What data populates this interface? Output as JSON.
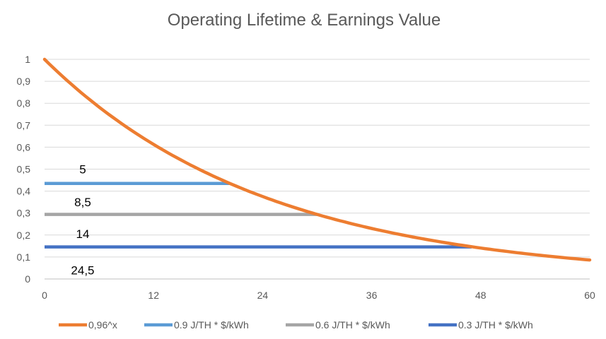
{
  "chart_data": {
    "type": "line",
    "title": "Operating Lifetime & Earnings Value",
    "xlabel": "",
    "ylabel": "",
    "xlim": [
      0,
      60
    ],
    "ylim": [
      0,
      1
    ],
    "x_ticks": [
      "0",
      "12",
      "24",
      "36",
      "48",
      "60"
    ],
    "y_ticks": [
      "0",
      "0,1",
      "0,2",
      "0,3",
      "0,4",
      "0,5",
      "0,6",
      "0,7",
      "0,8",
      "0,9",
      "1"
    ],
    "grid": "horizontal",
    "legend_position": "bottom",
    "series": [
      {
        "name": "0,96^x",
        "color": "#ED7D31",
        "base": 0.96,
        "x_start": 0,
        "x_end": 60
      },
      {
        "name": "0.9 J/TH * $/kWh",
        "color": "#5B9BD5",
        "x": [
          0,
          20.4
        ],
        "y": [
          0.435,
          0.435
        ]
      },
      {
        "name": "0.6  J/TH * $/kWh",
        "color": "#A5A5A5",
        "x": [
          0,
          30
        ],
        "y": [
          0.294,
          0.294
        ]
      },
      {
        "name": "0.3  J/TH * $/kWh",
        "color": "#4472C4",
        "x": [
          0,
          47
        ],
        "y": [
          0.146,
          0.146
        ]
      }
    ],
    "annotations": [
      {
        "text": "5",
        "x": 4.2,
        "y": 0.5
      },
      {
        "text": "8,5",
        "x": 4.2,
        "y": 0.35
      },
      {
        "text": "14",
        "x": 4.2,
        "y": 0.205
      },
      {
        "text": "24,5",
        "x": 4.2,
        "y": 0.04
      }
    ]
  }
}
